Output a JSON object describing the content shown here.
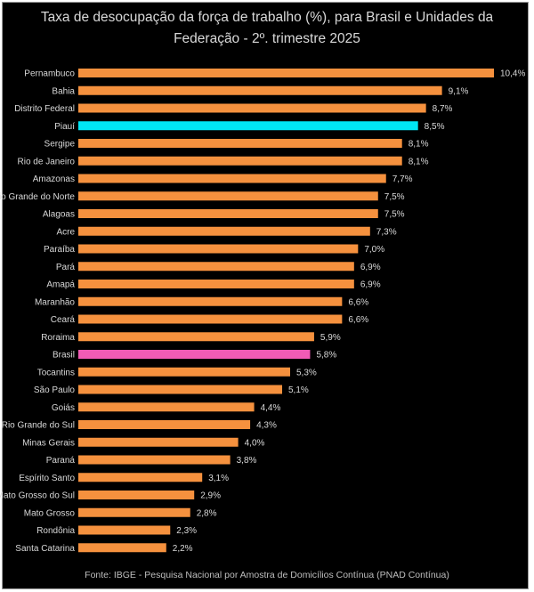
{
  "chart_data": {
    "type": "bar",
    "orientation": "horizontal",
    "title_line1": "Taxa de desocupação da força de trabalho (%), para Brasil e Unidades da",
    "title_line2": "Federação - 2º. trimestre 2025",
    "source": "Fonte: IBGE  - Pesquisa Nacional por Amostra de Domicílios Contínua (PNAD Contínua)",
    "categories": [
      "Pernambuco",
      "Bahia",
      "Distrito Federal",
      "Piauí",
      "Sergipe",
      "Rio de Janeiro",
      "Amazonas",
      "Rio Grande do Norte",
      "Alagoas",
      "Acre",
      "Paraíba",
      "Pará",
      "Amapá",
      "Maranhão",
      "Ceará",
      "Roraima",
      "Brasil",
      "Tocantins",
      "São Paulo",
      "Goiás",
      "Rio Grande do Sul",
      "Minas Gerais",
      "Paraná",
      "Espírito Santo",
      "Mato Grosso do Sul",
      "Mato Grosso",
      "Rondônia",
      "Santa Catarina"
    ],
    "values": [
      10.4,
      9.1,
      8.7,
      8.5,
      8.1,
      8.1,
      7.7,
      7.5,
      7.5,
      7.3,
      7.0,
      6.9,
      6.9,
      6.6,
      6.6,
      5.9,
      5.8,
      5.3,
      5.1,
      4.4,
      4.3,
      4.0,
      3.8,
      3.1,
      2.9,
      2.8,
      2.3,
      2.2
    ],
    "value_labels": [
      "10,4%",
      "9,1%",
      "8,7%",
      "8,5%",
      "8,1%",
      "8,1%",
      "7,7%",
      "7,5%",
      "7,5%",
      "7,3%",
      "7,0%",
      "6,9%",
      "6,9%",
      "6,6%",
      "6,6%",
      "5,9%",
      "5,8%",
      "5,3%",
      "5,1%",
      "4,4%",
      "4,3%",
      "4,0%",
      "3,8%",
      "3,1%",
      "2,9%",
      "2,8%",
      "2,3%",
      "2,2%"
    ],
    "xlim": [
      0,
      10.4
    ],
    "grid": false,
    "colors": {
      "default": "#f5913e",
      "highlight_piaui": "#00e5f5",
      "highlight_brasil": "#f15bb5",
      "background": "#000000",
      "text": "#d9d9d9"
    },
    "highlights": {
      "Piauí": "highlight_piaui",
      "Brasil": "highlight_brasil"
    }
  }
}
